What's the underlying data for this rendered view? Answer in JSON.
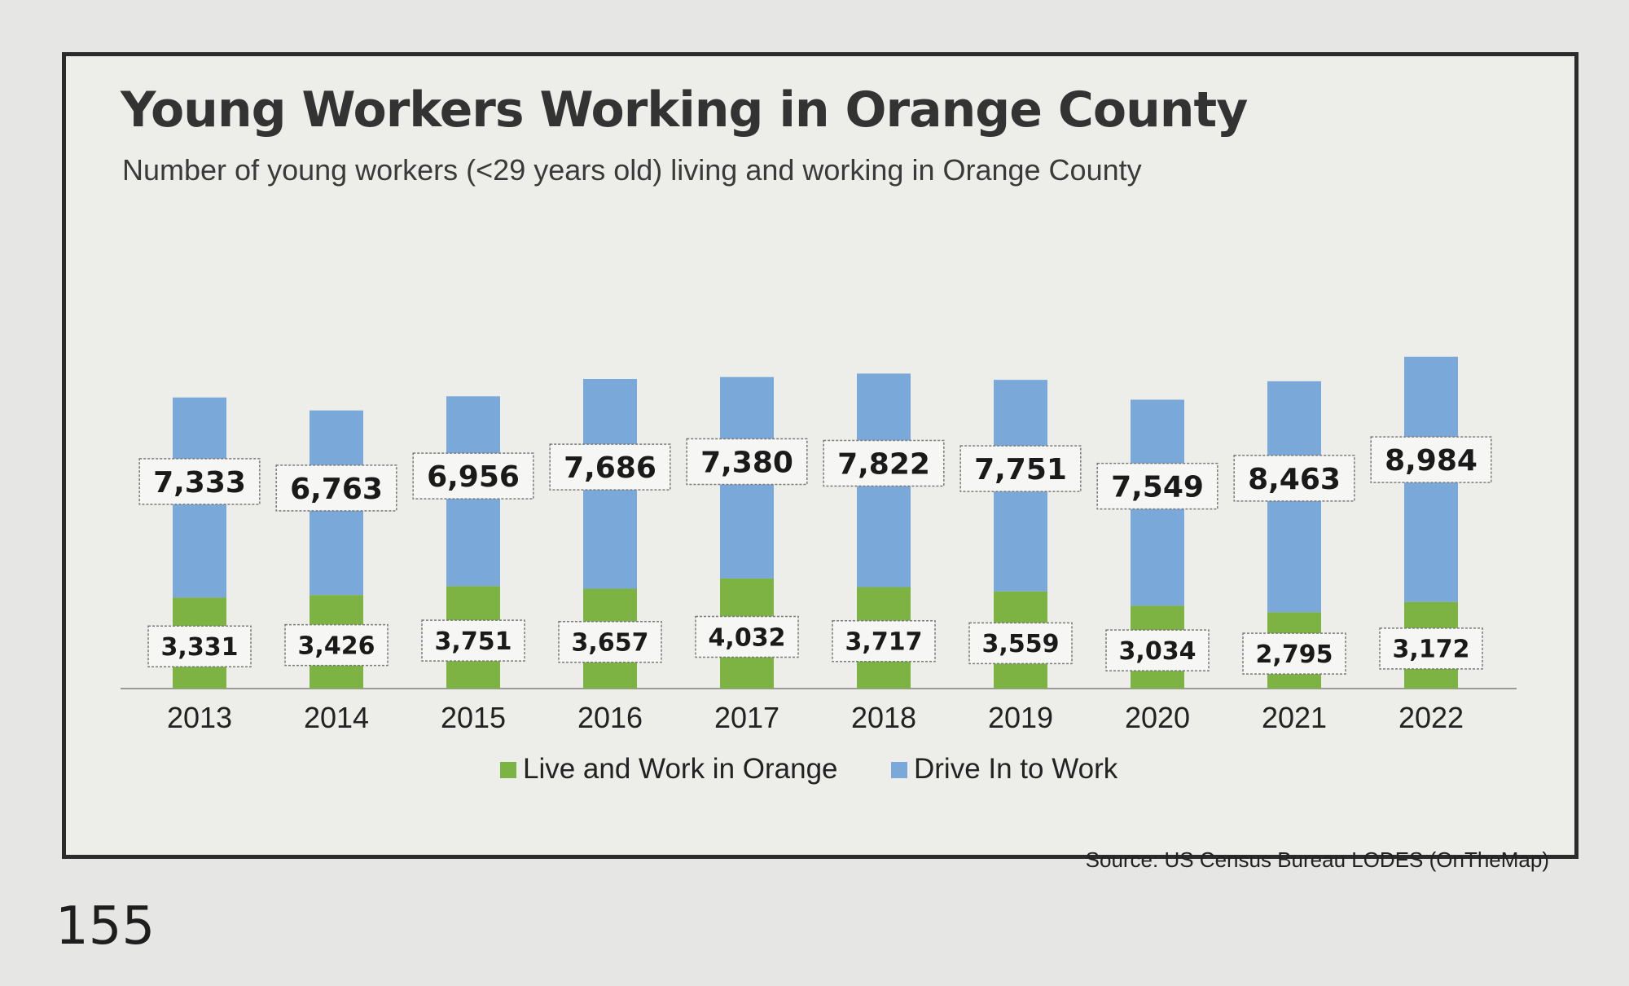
{
  "page_number": "155",
  "chart_data": {
    "type": "bar",
    "stacked": true,
    "title": "Young Workers Working in Orange County",
    "subtitle": "Number of young workers (<29 years old) living and working in Orange County",
    "categories": [
      "2013",
      "2014",
      "2015",
      "2016",
      "2017",
      "2018",
      "2019",
      "2020",
      "2021",
      "2022"
    ],
    "series": [
      {
        "name": "Live and Work in Orange",
        "color": "#7cb342",
        "values": [
          3331,
          3426,
          3751,
          3657,
          4032,
          3717,
          3559,
          3034,
          2795,
          3172
        ],
        "labels": [
          "3,331",
          "3,426",
          "3,751",
          "3,657",
          "4,032",
          "3,717",
          "3,559",
          "3,034",
          "2,795",
          "3,172"
        ]
      },
      {
        "name": "Drive In to Work",
        "color": "#7aa8d8",
        "values": [
          7333,
          6763,
          6956,
          7686,
          7380,
          7822,
          7751,
          7549,
          8463,
          8984
        ],
        "labels": [
          "7,333",
          "6,763",
          "6,956",
          "7,686",
          "7,380",
          "7,822",
          "7,751",
          "7,549",
          "8,463",
          "8,984"
        ]
      }
    ],
    "legend_position": "bottom-center",
    "grid": false,
    "source": "Source: US Census Bureau LODES (OnTheMap)"
  }
}
